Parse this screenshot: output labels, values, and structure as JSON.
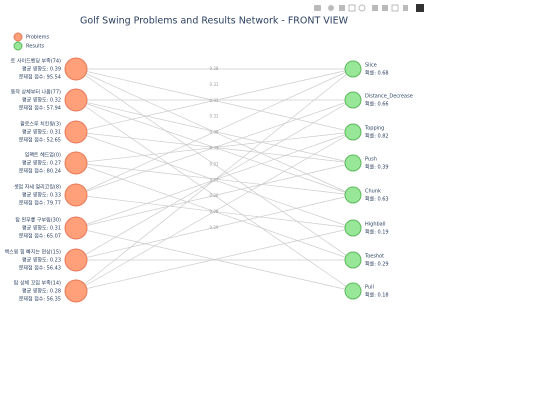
{
  "title": "Golf Swing Problems and Results Network - FRONT VIEW",
  "legend": [
    "Problems",
    "Results"
  ],
  "problems": [
    {
      "name": "토 사이드벤딩 부족(74)",
      "impact": "평균 영향도: 0.39",
      "score": "문제점 점수: 95.54"
    },
    {
      "name": "동작 상체부터 나옴(77)",
      "impact": "평균 영향도: 0.32",
      "score": "문제점 점수: 57.94"
    },
    {
      "name": "팔로스루 치킨윙(3)",
      "impact": "평균 영향도: 0.31",
      "score": "문제점 점수: 52.65"
    },
    {
      "name": "임팩트 헤드업(0)",
      "impact": "평균 영향도: 0.27",
      "score": "문제점 점수: 80.24"
    },
    {
      "name": "셋업 자세 얼리코킹(8)",
      "impact": "평균 영향도: 0.33",
      "score": "문제점 점수: 79.77"
    },
    {
      "name": "탑 왼무릎 구부림(30)",
      "impact": "평균 영향도: 0.31",
      "score": "문제점 점수: 65.07"
    },
    {
      "name": "백스윙 힘 빠지는 현상(15)",
      "impact": "평균 영향도: 0.23",
      "score": "문제점 점수: 56.43"
    },
    {
      "name": "탑 상체 꼬임 부족(14)",
      "impact": "평균 영향도: 0.28",
      "score": "문제점 점수: 56.35"
    }
  ],
  "results": [
    {
      "name": "Slice",
      "prob": "확률: 0.68"
    },
    {
      "name": "Distance_Decrease",
      "prob": "확률: 0.66"
    },
    {
      "name": "Topping",
      "prob": "확률: 0.82"
    },
    {
      "name": "Push",
      "prob": "확률: 0.39"
    },
    {
      "name": "Chunk",
      "prob": "확률: 0.63"
    },
    {
      "name": "Highball",
      "prob": "확률: 0.19"
    },
    {
      "name": "Toeshot",
      "prob": "확률: 0.29"
    },
    {
      "name": "Pull",
      "prob": "확률: 0.18"
    }
  ],
  "edge_labels": [
    "0.28",
    "0.31",
    "0.31",
    "0.31",
    "0.30",
    "0.33",
    "0.31",
    "0.27",
    "0.26",
    "0.28",
    "0.29"
  ]
}
